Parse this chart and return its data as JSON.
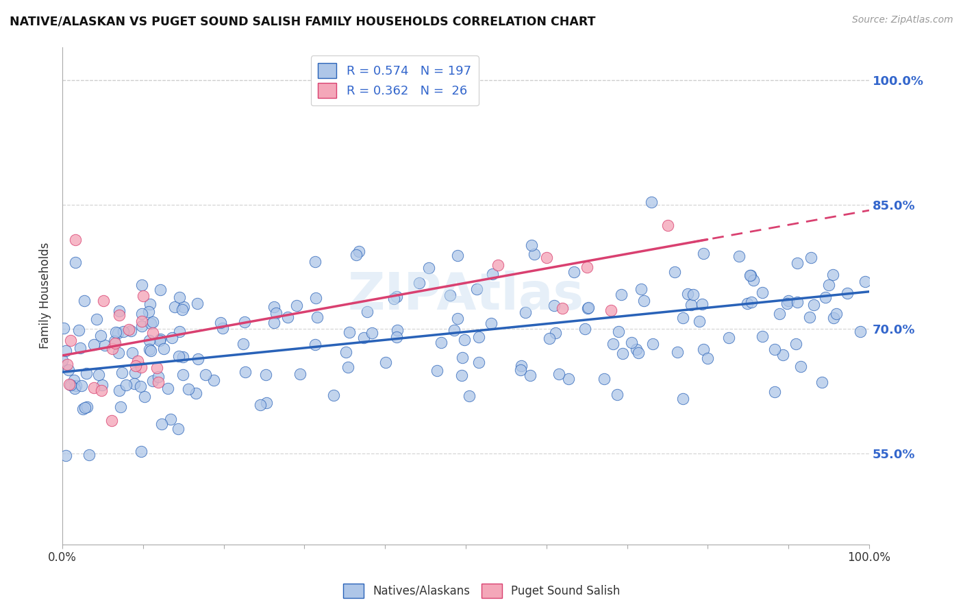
{
  "title": "NATIVE/ALASKAN VS PUGET SOUND SALISH FAMILY HOUSEHOLDS CORRELATION CHART",
  "source": "Source: ZipAtlas.com",
  "ylabel": "Family Households",
  "xlim": [
    0.0,
    1.0
  ],
  "ylim": [
    0.44,
    1.04
  ],
  "yticks": [
    0.55,
    0.7,
    0.85,
    1.0
  ],
  "ytick_labels": [
    "55.0%",
    "70.0%",
    "85.0%",
    "100.0%"
  ],
  "blue_R": "0.574",
  "blue_N": "197",
  "pink_R": "0.362",
  "pink_N": "26",
  "blue_color": "#aec6e8",
  "pink_color": "#f4a7b9",
  "blue_line_color": "#2962b8",
  "pink_line_color": "#d94070",
  "background_color": "#ffffff",
  "grid_color": "#cccccc",
  "blue_line_intercept": 0.648,
  "blue_line_slope": 0.097,
  "pink_line_intercept": 0.668,
  "pink_line_slope": 0.175
}
